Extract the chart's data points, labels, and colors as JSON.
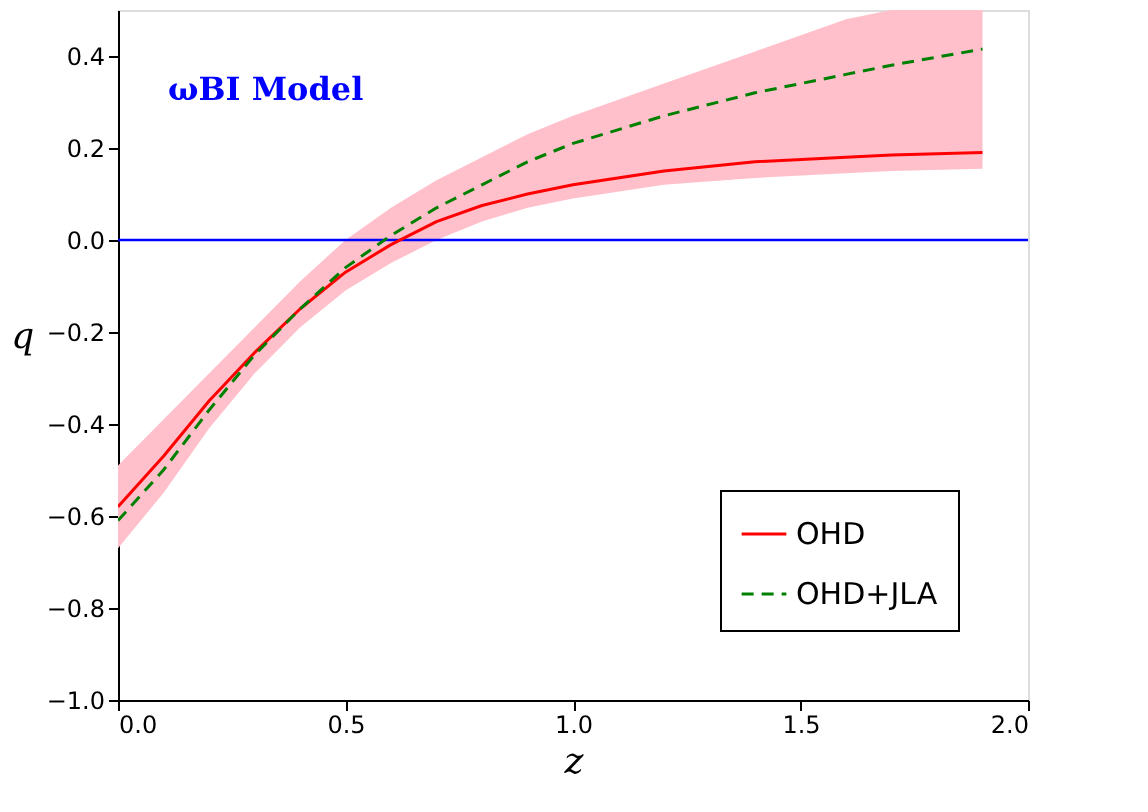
{
  "chart_data": {
    "type": "line",
    "xlabel": "z",
    "ylabel": "q",
    "annotations": [
      "ωBI Model"
    ],
    "x": [
      0,
      0.1,
      0.2,
      0.3,
      0.4,
      0.5,
      0.6,
      0.7,
      0.8,
      0.9,
      1.0,
      1.2,
      1.4,
      1.6,
      1.7,
      1.9
    ],
    "series": [
      {
        "name": "OHD",
        "color": "#ff0000",
        "line_style": "solid",
        "values": [
          -0.58,
          -0.47,
          -0.35,
          -0.245,
          -0.15,
          -0.07,
          -0.01,
          0.04,
          0.075,
          0.1,
          0.12,
          0.15,
          0.17,
          0.18,
          0.185,
          0.19
        ],
        "lower": [
          -0.67,
          -0.55,
          -0.41,
          -0.29,
          -0.19,
          -0.11,
          -0.05,
          0.0,
          0.04,
          0.07,
          0.09,
          0.12,
          0.135,
          0.145,
          0.15,
          0.155
        ],
        "upper": [
          -0.49,
          -0.39,
          -0.29,
          -0.19,
          -0.09,
          0.0,
          0.07,
          0.13,
          0.18,
          0.23,
          0.27,
          0.34,
          0.41,
          0.48,
          0.5,
          0.5
        ]
      },
      {
        "name": "OHD+JLA",
        "color": "#008000",
        "line_style": "dashed",
        "values": [
          -0.61,
          -0.5,
          -0.37,
          -0.25,
          -0.15,
          -0.06,
          0.01,
          0.07,
          0.12,
          0.17,
          0.21,
          0.27,
          0.32,
          0.36,
          0.38,
          0.415
        ]
      }
    ],
    "ref_lines": [
      {
        "axis": "y",
        "value": 0,
        "color": "#0000ff"
      }
    ],
    "xlim": [
      0,
      2
    ],
    "xticks": [
      {
        "value": 0,
        "label": "0.0"
      },
      {
        "value": 0.5,
        "label": "0.5"
      },
      {
        "value": 1,
        "label": "1.0"
      },
      {
        "value": 1.5,
        "label": "1.5"
      },
      {
        "value": 2,
        "label": "2.0"
      }
    ],
    "ylim": [
      -1,
      0.5
    ],
    "yticks": [
      {
        "value": -1,
        "label": "−1.0"
      },
      {
        "value": -0.8,
        "label": "−0.8"
      },
      {
        "value": -0.6,
        "label": "−0.6"
      },
      {
        "value": -0.4,
        "label": "−0.4"
      },
      {
        "value": -0.2,
        "label": "−0.2"
      },
      {
        "value": 0,
        "label": "0.0"
      },
      {
        "value": 0.2,
        "label": "0.2"
      },
      {
        "value": 0.4,
        "label": "0.4"
      }
    ],
    "grid": false,
    "legend": "bottom right",
    "marker": "none"
  }
}
